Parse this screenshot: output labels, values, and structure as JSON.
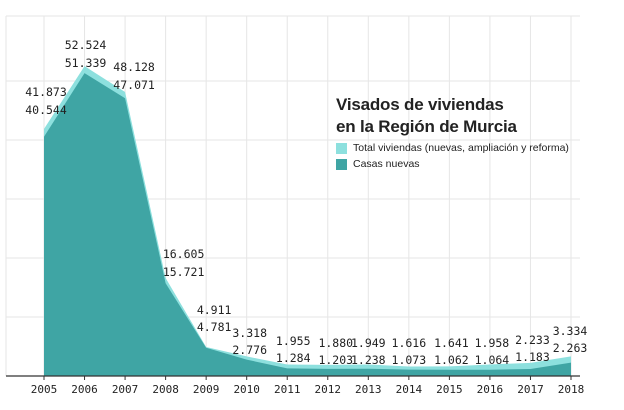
{
  "chart_data": {
    "type": "area",
    "title_line1": "Visados de viviendas",
    "title_line2": "en la Región de Murcia",
    "xlabel": "",
    "ylabel": "",
    "categories": [
      "2005",
      "2006",
      "2007",
      "2008",
      "2009",
      "2010",
      "2011",
      "2012",
      "2013",
      "2014",
      "2015",
      "2016",
      "2017",
      "2018"
    ],
    "ylim": [
      0,
      60000
    ],
    "grid": true,
    "legend_position": "top-right",
    "series": [
      {
        "name": "Total viviendas (nuevas, ampliación y reforma)",
        "color": "#8de0de",
        "values": [
          41873,
          52524,
          48128,
          16605,
          4911,
          3318,
          1955,
          1880,
          1949,
          1616,
          1641,
          1958,
          2233,
          3334
        ],
        "labels": [
          "41.873",
          "52.524",
          "48.128",
          "16.605",
          "4.911",
          "3.318",
          "1.955",
          "1.880",
          "1.949",
          "1.616",
          "1.641",
          "1.958",
          "2.233",
          "3.334"
        ]
      },
      {
        "name": "Casas nuevas",
        "color": "#3fa5a4",
        "values": [
          40544,
          51339,
          47071,
          15721,
          4781,
          2776,
          1284,
          1203,
          1238,
          1073,
          1062,
          1064,
          1183,
          2263
        ],
        "labels": [
          "40.544",
          "51.339",
          "47.071",
          "15.721",
          "4.781",
          "2.776",
          "1.284",
          "1.203",
          "1.238",
          "1.073",
          "1.062",
          "1.064",
          "1.183",
          "2.263"
        ]
      }
    ]
  }
}
